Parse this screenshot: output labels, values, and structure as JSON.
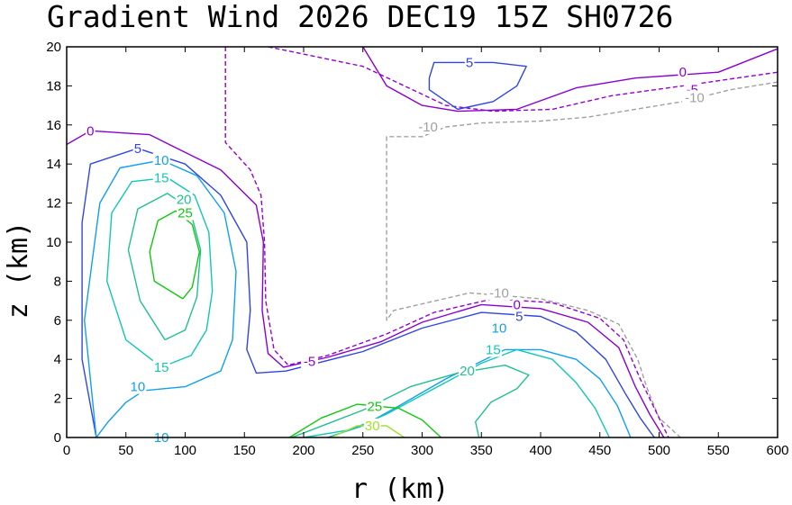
{
  "chart_data": {
    "type": "contour",
    "title": "Gradient Wind 2026 DEC19 15Z   SH0726",
    "xlabel": "r (km)",
    "ylabel": "z (km)",
    "xlim": [
      0,
      600
    ],
    "ylim": [
      0,
      20
    ],
    "xticks": [
      0,
      50,
      100,
      150,
      200,
      250,
      300,
      350,
      400,
      450,
      500,
      550,
      600
    ],
    "yticks": [
      0,
      2,
      4,
      6,
      8,
      10,
      12,
      14,
      16,
      18,
      20
    ],
    "grid": false,
    "colors": {
      "m10": "#a0a0a0",
      "m5": "#9400d3",
      "c0": "#8a00d0",
      "c5": "#3046e0",
      "c10": "#10a0f0",
      "c15": "#10c8b4",
      "c20": "#20c090",
      "c25": "#10c810",
      "c30": "#a0e030"
    },
    "contours": [
      {
        "level": -10,
        "dashed": true,
        "color": "m10",
        "paths": [
          [
            [
              600,
              18.2
            ],
            [
              560,
              17.8
            ],
            [
              520,
              17.2
            ],
            [
              480,
              16.8
            ],
            [
              440,
              16.4
            ],
            [
              400,
              16.2
            ],
            [
              350,
              16.1
            ],
            [
              320,
              15.9
            ],
            [
              300,
              15.4
            ],
            [
              270,
              15.4
            ],
            [
              270,
              6.0
            ],
            [
              276,
              6.5
            ],
            [
              340,
              7.4
            ],
            [
              400,
              7.1
            ],
            [
              440,
              6.5
            ],
            [
              466,
              5.8
            ],
            [
              482,
              4.0
            ],
            [
              490,
              2.5
            ],
            [
              500,
              1.0
            ],
            [
              518,
              0
            ]
          ]
        ]
      },
      {
        "level": -5,
        "dashed": true,
        "color": "m5",
        "paths": [
          [
            [
              134,
              20
            ],
            [
              134,
              15.1
            ],
            [
              155,
              13.7
            ],
            [
              164,
              12.4
            ],
            [
              167,
              10.0
            ],
            [
              168,
              7.0
            ],
            [
              175,
              4.5
            ],
            [
              187,
              3.7
            ],
            [
              220,
              4.2
            ],
            [
              270,
              5.3
            ],
            [
              310,
              6.4
            ],
            [
              360,
              7.1
            ],
            [
              410,
              6.9
            ],
            [
              450,
              6.1
            ],
            [
              470,
              5.0
            ],
            [
              484,
              3.0
            ],
            [
              496,
              1.5
            ],
            [
              508,
              0
            ]
          ],
          [
            [
              170,
              20
            ],
            [
              250,
              19.0
            ],
            [
              320,
              17.0
            ],
            [
              360,
              16.7
            ],
            [
              410,
              16.8
            ],
            [
              460,
              17.5
            ],
            [
              520,
              18.0
            ],
            [
              600,
              18.7
            ]
          ]
        ]
      },
      {
        "level": 0,
        "dashed": false,
        "color": "c0",
        "paths": [
          [
            [
              0,
              15.0
            ],
            [
              20,
              15.7
            ],
            [
              70,
              15.5
            ],
            [
              90,
              14.9
            ],
            [
              130,
              13.7
            ],
            [
              160,
              11.9
            ],
            [
              166,
              10.0
            ],
            [
              165,
              6.5
            ],
            [
              170,
              4.3
            ],
            [
              183,
              3.6
            ],
            [
              220,
              4.1
            ],
            [
              265,
              4.9
            ],
            [
              300,
              5.9
            ],
            [
              350,
              6.8
            ],
            [
              400,
              6.6
            ],
            [
              440,
              5.9
            ],
            [
              466,
              4.6
            ],
            [
              480,
              2.6
            ],
            [
              492,
              1.2
            ],
            [
              504,
              0
            ]
          ],
          [
            [
              250,
              20
            ],
            [
              270,
              18.0
            ],
            [
              300,
              17.0
            ],
            [
              330,
              16.7
            ],
            [
              380,
              16.8
            ],
            [
              430,
              17.9
            ],
            [
              480,
              18.4
            ],
            [
              550,
              18.7
            ],
            [
              600,
              19.9
            ]
          ]
        ]
      },
      {
        "level": 5,
        "dashed": false,
        "color": "c5",
        "paths": [
          [
            [
              25,
              0
            ],
            [
              13,
              4.0
            ],
            [
              13,
              11.0
            ],
            [
              20,
              14.0
            ],
            [
              60,
              14.8
            ],
            [
              100,
              14.0
            ],
            [
              130,
              12.4
            ],
            [
              152,
              10.0
            ],
            [
              155,
              6.5
            ],
            [
              152,
              4.5
            ],
            [
              160,
              3.3
            ],
            [
              185,
              3.4
            ],
            [
              250,
              4.4
            ],
            [
              300,
              5.6
            ],
            [
              350,
              6.4
            ],
            [
              400,
              6.2
            ],
            [
              430,
              5.4
            ],
            [
              455,
              4.0
            ],
            [
              472,
              2.2
            ],
            [
              484,
              1.0
            ],
            [
              496,
              0
            ]
          ],
          [
            [
              306,
              18.4
            ],
            [
              310,
              19.2
            ],
            [
              360,
              19.2
            ],
            [
              388,
              19.0
            ],
            [
              380,
              18.0
            ],
            [
              360,
              17.2
            ],
            [
              330,
              16.8
            ],
            [
              306,
              17.8
            ],
            [
              306,
              18.4
            ]
          ]
        ]
      },
      {
        "level": 10,
        "dashed": false,
        "color": "c10",
        "paths": [
          [
            [
              25,
              0
            ],
            [
              15,
              6.0
            ],
            [
              28,
              12.0
            ],
            [
              45,
              13.8
            ],
            [
              80,
              14.2
            ],
            [
              110,
              13.4
            ],
            [
              133,
              11.5
            ],
            [
              143,
              8.5
            ],
            [
              140,
              5.0
            ],
            [
              130,
              3.4
            ],
            [
              100,
              2.6
            ],
            [
              65,
              2.4
            ],
            [
              50,
              1.8
            ],
            [
              35,
              0.8
            ],
            [
              25,
              0
            ]
          ],
          [
            [
              220,
              0
            ],
            [
              250,
              0.6
            ],
            [
              280,
              1.6
            ],
            [
              320,
              3.0
            ],
            [
              370,
              4.5
            ],
            [
              400,
              4.5
            ],
            [
              430,
              4.0
            ],
            [
              450,
              3.0
            ],
            [
              465,
              1.6
            ],
            [
              476,
              0
            ]
          ]
        ]
      },
      {
        "level": 15,
        "dashed": false,
        "color": "c15",
        "paths": [
          [
            [
              80,
              3.6
            ],
            [
              50,
              5.0
            ],
            [
              34,
              8.0
            ],
            [
              38,
              11.5
            ],
            [
              55,
              13.1
            ],
            [
              85,
              13.3
            ],
            [
              108,
              12.4
            ],
            [
              120,
              10.5
            ],
            [
              123,
              7.5
            ],
            [
              118,
              5.5
            ],
            [
              105,
              4.2
            ],
            [
              80,
              3.6
            ]
          ],
          [
            [
              200,
              0
            ],
            [
              240,
              0.4
            ],
            [
              270,
              1.2
            ],
            [
              310,
              2.5
            ],
            [
              350,
              3.8
            ],
            [
              380,
              4.5
            ],
            [
              410,
              4.0
            ],
            [
              430,
              2.8
            ],
            [
              446,
              1.5
            ],
            [
              458,
              0
            ]
          ]
        ]
      },
      {
        "level": 20,
        "dashed": false,
        "color": "c20",
        "paths": [
          [
            [
              83,
              5.0
            ],
            [
              62,
              7.0
            ],
            [
              52,
              9.6
            ],
            [
              60,
              11.7
            ],
            [
              85,
              12.5
            ],
            [
              104,
              11.7
            ],
            [
              113,
              9.6
            ],
            [
              110,
              7.2
            ],
            [
              100,
              5.5
            ],
            [
              83,
              5.0
            ]
          ],
          [
            [
              190,
              0
            ],
            [
              220,
              0.7
            ],
            [
              250,
              1.4
            ],
            [
              290,
              2.6
            ],
            [
              330,
              3.3
            ],
            [
              370,
              3.7
            ],
            [
              390,
              3.2
            ],
            [
              380,
              2.5
            ],
            [
              358,
              1.8
            ],
            [
              345,
              0.8
            ],
            [
              348,
              0
            ]
          ]
        ]
      },
      {
        "level": 25,
        "dashed": false,
        "color": "c25",
        "paths": [
          [
            [
              98,
              7.1
            ],
            [
              74,
              8.0
            ],
            [
              70,
              9.5
            ],
            [
              77,
              11.1
            ],
            [
              92,
              11.6
            ],
            [
              106,
              10.9
            ],
            [
              112,
              9.5
            ],
            [
              106,
              7.7
            ],
            [
              98,
              7.1
            ]
          ],
          [
            [
              188,
              0
            ],
            [
              215,
              1.0
            ],
            [
              245,
              1.7
            ],
            [
              280,
              1.5
            ],
            [
              300,
              0.9
            ],
            [
              316,
              0
            ]
          ]
        ]
      },
      {
        "level": 30,
        "dashed": false,
        "color": "c30",
        "paths": [
          [
            [
              223,
              0
            ],
            [
              245,
              0.6
            ],
            [
              270,
              0.6
            ],
            [
              285,
              0
            ]
          ]
        ]
      }
    ],
    "labels": [
      {
        "text": "0",
        "x": 20,
        "y": 15.7,
        "color": "c0"
      },
      {
        "text": "5",
        "x": 60,
        "y": 14.8,
        "color": "c5"
      },
      {
        "text": "10",
        "x": 80,
        "y": 14.2,
        "color": "c10"
      },
      {
        "text": "15",
        "x": 80,
        "y": 13.3,
        "color": "c15"
      },
      {
        "text": "20",
        "x": 99,
        "y": 12.2,
        "color": "c20"
      },
      {
        "text": "25",
        "x": 100,
        "y": 11.5,
        "color": "c25"
      },
      {
        "text": "15",
        "x": 80,
        "y": 3.6,
        "color": "c15"
      },
      {
        "text": "10",
        "x": 60,
        "y": 2.6,
        "color": "c10"
      },
      {
        "text": "10",
        "x": 80,
        "y": 0.0,
        "color": "c10"
      },
      {
        "text": "-5",
        "x": 205,
        "y": 3.9,
        "color": "m5"
      },
      {
        "text": "25",
        "x": 260,
        "y": 1.6,
        "color": "c25"
      },
      {
        "text": "30",
        "x": 258,
        "y": 0.6,
        "color": "c30"
      },
      {
        "text": "20",
        "x": 338,
        "y": 3.4,
        "color": "c20"
      },
      {
        "text": "15",
        "x": 360,
        "y": 4.5,
        "color": "c15"
      },
      {
        "text": "10",
        "x": 365,
        "y": 5.6,
        "color": "c10"
      },
      {
        "text": "5",
        "x": 382,
        "y": 6.2,
        "color": "c5"
      },
      {
        "text": "0",
        "x": 380,
        "y": 6.8,
        "color": "c0"
      },
      {
        "text": "-10",
        "x": 365,
        "y": 7.4,
        "color": "m10"
      },
      {
        "text": "-10",
        "x": 305,
        "y": 15.9,
        "color": "m10"
      },
      {
        "text": "5",
        "x": 340,
        "y": 19.2,
        "color": "c5"
      },
      {
        "text": "0",
        "x": 520,
        "y": 18.7,
        "color": "c0"
      },
      {
        "text": "-5",
        "x": 528,
        "y": 17.8,
        "color": "m5"
      },
      {
        "text": "-10",
        "x": 530,
        "y": 17.4,
        "color": "m10"
      }
    ]
  }
}
